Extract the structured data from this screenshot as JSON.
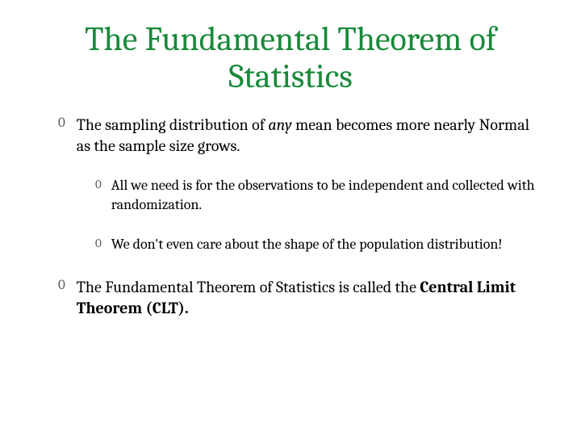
{
  "title": "The Fundamental Theorem of Statistics",
  "bullets": {
    "b1_pre": "The sampling distribution of ",
    "b1_em": "any",
    "b1_post": " mean becomes more nearly Normal as the sample size grows.",
    "b1a": "All we need is for the observations to be independent and collected with randomization.",
    "b1b": "We don't even care about the shape of the population distribution!",
    "b2_pre": "The Fundamental Theorem of Statistics is called the ",
    "b2_bold": "Central Limit Theorem (CLT)."
  },
  "marker": "0",
  "colors": {
    "title": "#1a8a3a",
    "text": "#000000",
    "marker": "#555555",
    "background": "#ffffff"
  },
  "typography": {
    "title_fontsize": 42,
    "body_fontsize_l1": 20,
    "body_fontsize_l2": 18,
    "font_family": "Cambria, Georgia, serif"
  }
}
